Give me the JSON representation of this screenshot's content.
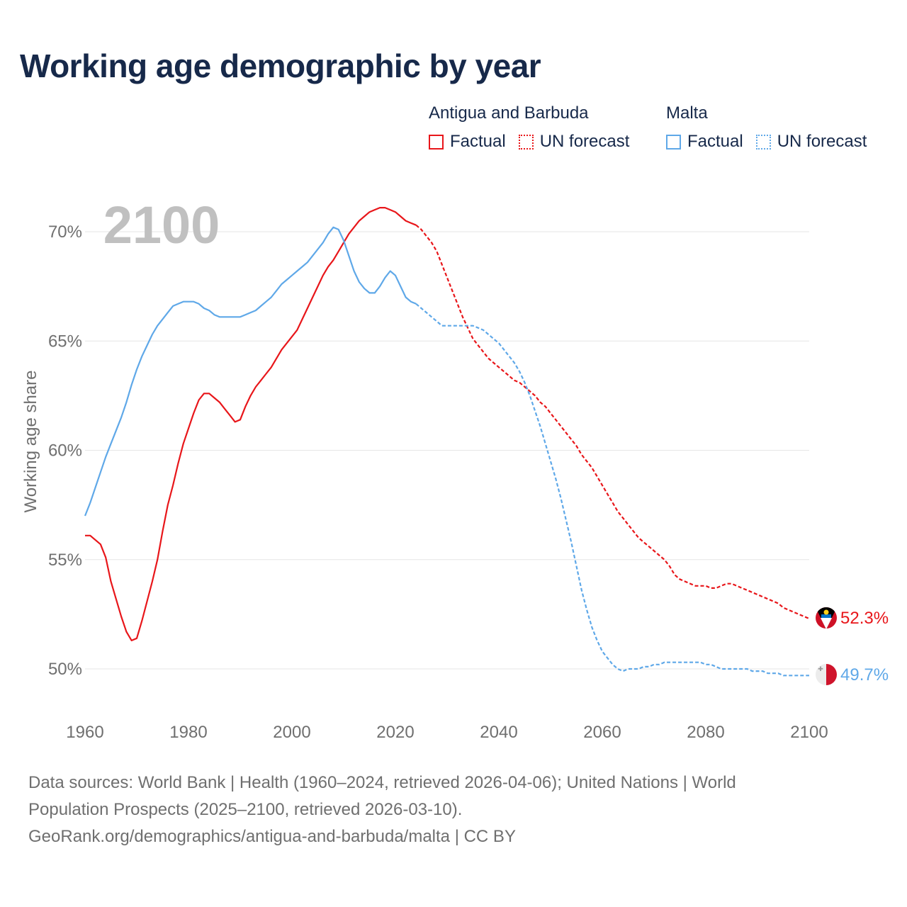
{
  "title": "Working age demographic by year",
  "legend": {
    "groups": [
      {
        "name": "Antigua and Barbuda",
        "factual": "Factual",
        "forecast": "UN forecast",
        "color": "#e8161a"
      },
      {
        "name": "Malta",
        "factual": "Factual",
        "forecast": "UN forecast",
        "color": "#5fa8e8"
      }
    ]
  },
  "year_label": "2100",
  "chart_data": {
    "type": "line",
    "title": "Working age demographic by year",
    "xlabel": "",
    "ylabel": "Working age share",
    "xlim": [
      1960,
      2100
    ],
    "ylim": [
      48.2,
      72.3
    ],
    "x_ticks": [
      1960,
      1980,
      2000,
      2020,
      2040,
      2060,
      2080,
      2100
    ],
    "x_tick_labels": [
      "1960",
      "1980",
      "2000",
      "2020",
      "2040",
      "2060",
      "2080",
      "2100"
    ],
    "y_ticks": [
      50,
      55,
      60,
      65,
      70
    ],
    "y_tick_labels": [
      "50%",
      "55%",
      "60%",
      "65%",
      "70%"
    ],
    "forecast_start": 2024,
    "series": [
      {
        "name": "Antigua and Barbuda",
        "color": "#e8161a",
        "end_label": "52.3%",
        "points": [
          [
            1960,
            56.1
          ],
          [
            1961,
            56.1
          ],
          [
            1963,
            55.7
          ],
          [
            1964,
            55.1
          ],
          [
            1965,
            54.0
          ],
          [
            1966,
            53.2
          ],
          [
            1967,
            52.4
          ],
          [
            1968,
            51.7
          ],
          [
            1969,
            51.3
          ],
          [
            1970,
            51.4
          ],
          [
            1971,
            52.2
          ],
          [
            1972,
            53.1
          ],
          [
            1973,
            54.0
          ],
          [
            1974,
            55.0
          ],
          [
            1975,
            56.3
          ],
          [
            1976,
            57.5
          ],
          [
            1977,
            58.4
          ],
          [
            1978,
            59.4
          ],
          [
            1979,
            60.3
          ],
          [
            1980,
            61.0
          ],
          [
            1981,
            61.7
          ],
          [
            1982,
            62.3
          ],
          [
            1983,
            62.6
          ],
          [
            1984,
            62.6
          ],
          [
            1985,
            62.4
          ],
          [
            1986,
            62.2
          ],
          [
            1987,
            61.9
          ],
          [
            1988,
            61.6
          ],
          [
            1989,
            61.3
          ],
          [
            1990,
            61.4
          ],
          [
            1991,
            62.0
          ],
          [
            1992,
            62.5
          ],
          [
            1993,
            62.9
          ],
          [
            1994,
            63.2
          ],
          [
            1995,
            63.5
          ],
          [
            1996,
            63.8
          ],
          [
            1997,
            64.2
          ],
          [
            1998,
            64.6
          ],
          [
            1999,
            64.9
          ],
          [
            2000,
            65.2
          ],
          [
            2001,
            65.5
          ],
          [
            2002,
            66.0
          ],
          [
            2003,
            66.5
          ],
          [
            2004,
            67.0
          ],
          [
            2005,
            67.5
          ],
          [
            2006,
            68.0
          ],
          [
            2007,
            68.4
          ],
          [
            2008,
            68.7
          ],
          [
            2009,
            69.1
          ],
          [
            2010,
            69.5
          ],
          [
            2011,
            69.9
          ],
          [
            2012,
            70.2
          ],
          [
            2013,
            70.5
          ],
          [
            2014,
            70.7
          ],
          [
            2015,
            70.9
          ],
          [
            2016,
            71.0
          ],
          [
            2017,
            71.1
          ],
          [
            2018,
            71.1
          ],
          [
            2019,
            71.0
          ],
          [
            2020,
            70.9
          ],
          [
            2021,
            70.7
          ],
          [
            2022,
            70.5
          ],
          [
            2023,
            70.4
          ],
          [
            2024,
            70.3
          ],
          [
            2025,
            70.1
          ],
          [
            2026,
            69.8
          ],
          [
            2027,
            69.5
          ],
          [
            2028,
            69.1
          ],
          [
            2029,
            68.5
          ],
          [
            2030,
            67.9
          ],
          [
            2031,
            67.3
          ],
          [
            2032,
            66.7
          ],
          [
            2033,
            66.1
          ],
          [
            2034,
            65.6
          ],
          [
            2035,
            65.1
          ],
          [
            2036,
            64.8
          ],
          [
            2037,
            64.5
          ],
          [
            2038,
            64.2
          ],
          [
            2039,
            64.0
          ],
          [
            2040,
            63.8
          ],
          [
            2041,
            63.6
          ],
          [
            2042,
            63.4
          ],
          [
            2043,
            63.2
          ],
          [
            2044,
            63.1
          ],
          [
            2045,
            62.9
          ],
          [
            2046,
            62.7
          ],
          [
            2047,
            62.5
          ],
          [
            2048,
            62.2
          ],
          [
            2049,
            62.0
          ],
          [
            2050,
            61.7
          ],
          [
            2051,
            61.4
          ],
          [
            2052,
            61.1
          ],
          [
            2053,
            60.8
          ],
          [
            2054,
            60.5
          ],
          [
            2055,
            60.2
          ],
          [
            2056,
            59.8
          ],
          [
            2057,
            59.5
          ],
          [
            2058,
            59.2
          ],
          [
            2059,
            58.8
          ],
          [
            2060,
            58.4
          ],
          [
            2061,
            58.0
          ],
          [
            2062,
            57.6
          ],
          [
            2063,
            57.2
          ],
          [
            2064,
            56.9
          ],
          [
            2065,
            56.6
          ],
          [
            2066,
            56.3
          ],
          [
            2067,
            56.0
          ],
          [
            2068,
            55.8
          ],
          [
            2069,
            55.6
          ],
          [
            2070,
            55.4
          ],
          [
            2071,
            55.2
          ],
          [
            2072,
            55.0
          ],
          [
            2073,
            54.7
          ],
          [
            2074,
            54.3
          ],
          [
            2075,
            54.1
          ],
          [
            2076,
            54.0
          ],
          [
            2077,
            53.9
          ],
          [
            2078,
            53.8
          ],
          [
            2079,
            53.8
          ],
          [
            2080,
            53.8
          ],
          [
            2081,
            53.7
          ],
          [
            2082,
            53.7
          ],
          [
            2083,
            53.8
          ],
          [
            2084,
            53.9
          ],
          [
            2085,
            53.9
          ],
          [
            2086,
            53.8
          ],
          [
            2087,
            53.7
          ],
          [
            2088,
            53.6
          ],
          [
            2089,
            53.5
          ],
          [
            2090,
            53.4
          ],
          [
            2091,
            53.3
          ],
          [
            2092,
            53.2
          ],
          [
            2093,
            53.1
          ],
          [
            2094,
            53.0
          ],
          [
            2095,
            52.8
          ],
          [
            2096,
            52.7
          ],
          [
            2097,
            52.6
          ],
          [
            2098,
            52.5
          ],
          [
            2099,
            52.4
          ],
          [
            2100,
            52.3
          ]
        ]
      },
      {
        "name": "Malta",
        "color": "#5fa8e8",
        "end_label": "49.7%",
        "points": [
          [
            1960,
            57.0
          ],
          [
            1961,
            57.6
          ],
          [
            1962,
            58.3
          ],
          [
            1963,
            59.0
          ],
          [
            1964,
            59.7
          ],
          [
            1965,
            60.3
          ],
          [
            1966,
            60.9
          ],
          [
            1967,
            61.5
          ],
          [
            1968,
            62.2
          ],
          [
            1969,
            63.0
          ],
          [
            1970,
            63.7
          ],
          [
            1971,
            64.3
          ],
          [
            1972,
            64.8
          ],
          [
            1973,
            65.3
          ],
          [
            1974,
            65.7
          ],
          [
            1975,
            66.0
          ],
          [
            1976,
            66.3
          ],
          [
            1977,
            66.6
          ],
          [
            1978,
            66.7
          ],
          [
            1979,
            66.8
          ],
          [
            1980,
            66.8
          ],
          [
            1981,
            66.8
          ],
          [
            1982,
            66.7
          ],
          [
            1983,
            66.5
          ],
          [
            1984,
            66.4
          ],
          [
            1985,
            66.2
          ],
          [
            1986,
            66.1
          ],
          [
            1987,
            66.1
          ],
          [
            1988,
            66.1
          ],
          [
            1989,
            66.1
          ],
          [
            1990,
            66.1
          ],
          [
            1991,
            66.2
          ],
          [
            1992,
            66.3
          ],
          [
            1993,
            66.4
          ],
          [
            1994,
            66.6
          ],
          [
            1995,
            66.8
          ],
          [
            1996,
            67.0
          ],
          [
            1997,
            67.3
          ],
          [
            1998,
            67.6
          ],
          [
            1999,
            67.8
          ],
          [
            2000,
            68.0
          ],
          [
            2001,
            68.2
          ],
          [
            2002,
            68.4
          ],
          [
            2003,
            68.6
          ],
          [
            2004,
            68.9
          ],
          [
            2005,
            69.2
          ],
          [
            2006,
            69.5
          ],
          [
            2007,
            69.9
          ],
          [
            2008,
            70.2
          ],
          [
            2009,
            70.1
          ],
          [
            2010,
            69.6
          ],
          [
            2011,
            68.9
          ],
          [
            2012,
            68.2
          ],
          [
            2013,
            67.7
          ],
          [
            2014,
            67.4
          ],
          [
            2015,
            67.2
          ],
          [
            2016,
            67.2
          ],
          [
            2017,
            67.5
          ],
          [
            2018,
            67.9
          ],
          [
            2019,
            68.2
          ],
          [
            2020,
            68.0
          ],
          [
            2021,
            67.5
          ],
          [
            2022,
            67.0
          ],
          [
            2023,
            66.8
          ],
          [
            2024,
            66.7
          ],
          [
            2025,
            66.5
          ],
          [
            2026,
            66.3
          ],
          [
            2027,
            66.1
          ],
          [
            2028,
            65.9
          ],
          [
            2029,
            65.7
          ],
          [
            2030,
            65.7
          ],
          [
            2031,
            65.7
          ],
          [
            2032,
            65.7
          ],
          [
            2033,
            65.7
          ],
          [
            2034,
            65.7
          ],
          [
            2035,
            65.7
          ],
          [
            2036,
            65.6
          ],
          [
            2037,
            65.5
          ],
          [
            2038,
            65.3
          ],
          [
            2039,
            65.1
          ],
          [
            2040,
            64.9
          ],
          [
            2041,
            64.6
          ],
          [
            2042,
            64.3
          ],
          [
            2043,
            64.0
          ],
          [
            2044,
            63.6
          ],
          [
            2045,
            63.1
          ],
          [
            2046,
            62.5
          ],
          [
            2047,
            61.8
          ],
          [
            2048,
            61.1
          ],
          [
            2049,
            60.3
          ],
          [
            2050,
            59.5
          ],
          [
            2051,
            58.7
          ],
          [
            2052,
            57.8
          ],
          [
            2053,
            56.8
          ],
          [
            2054,
            55.8
          ],
          [
            2055,
            54.7
          ],
          [
            2056,
            53.6
          ],
          [
            2057,
            52.7
          ],
          [
            2058,
            51.9
          ],
          [
            2059,
            51.3
          ],
          [
            2060,
            50.8
          ],
          [
            2061,
            50.5
          ],
          [
            2062,
            50.2
          ],
          [
            2063,
            50.0
          ],
          [
            2064,
            49.9
          ],
          [
            2065,
            50.0
          ],
          [
            2066,
            50.0
          ],
          [
            2067,
            50.0
          ],
          [
            2068,
            50.1
          ],
          [
            2069,
            50.1
          ],
          [
            2070,
            50.2
          ],
          [
            2071,
            50.2
          ],
          [
            2072,
            50.3
          ],
          [
            2073,
            50.3
          ],
          [
            2074,
            50.3
          ],
          [
            2075,
            50.3
          ],
          [
            2076,
            50.3
          ],
          [
            2077,
            50.3
          ],
          [
            2078,
            50.3
          ],
          [
            2079,
            50.3
          ],
          [
            2080,
            50.2
          ],
          [
            2081,
            50.2
          ],
          [
            2082,
            50.1
          ],
          [
            2083,
            50.0
          ],
          [
            2084,
            50.0
          ],
          [
            2085,
            50.0
          ],
          [
            2086,
            50.0
          ],
          [
            2087,
            50.0
          ],
          [
            2088,
            50.0
          ],
          [
            2089,
            49.9
          ],
          [
            2090,
            49.9
          ],
          [
            2091,
            49.9
          ],
          [
            2092,
            49.8
          ],
          [
            2093,
            49.8
          ],
          [
            2094,
            49.8
          ],
          [
            2095,
            49.7
          ],
          [
            2096,
            49.7
          ],
          [
            2097,
            49.7
          ],
          [
            2098,
            49.7
          ],
          [
            2099,
            49.7
          ],
          [
            2100,
            49.7
          ]
        ]
      }
    ]
  },
  "footer": {
    "line1": "Data sources: World Bank | Health (1960–2024, retrieved 2026-04-06); United Nations | World",
    "line2": "Population Prospects (2025–2100, retrieved 2026-03-10).",
    "line3": "GeoRank.org/demographics/antigua-and-barbuda/malta | CC BY"
  }
}
